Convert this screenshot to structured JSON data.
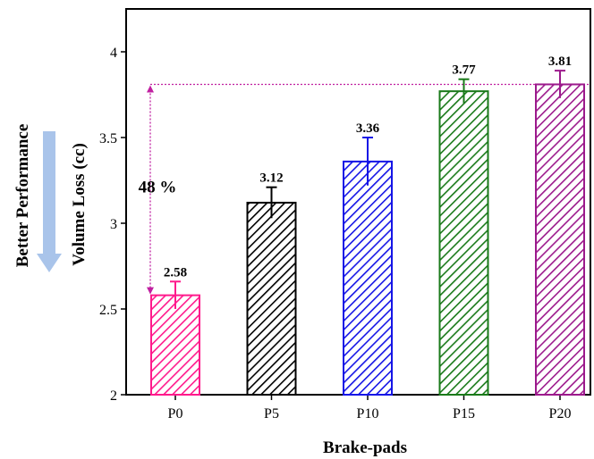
{
  "chart_data": {
    "type": "bar",
    "title": "",
    "xlabel": "Brake-pads",
    "ylabel": "Volume Loss (cc)",
    "categories": [
      "P0",
      "P5",
      "P10",
      "P15",
      "P20"
    ],
    "values": [
      2.58,
      3.12,
      3.36,
      3.77,
      3.81
    ],
    "value_labels": [
      "2.58",
      "3.12",
      "3.36",
      "3.77",
      "3.81"
    ],
    "errors": [
      0.08,
      0.09,
      0.14,
      0.07,
      0.08
    ],
    "colors": [
      "#ff1a8c",
      "#000000",
      "#1515e6",
      "#1a7a1a",
      "#9c1a8c"
    ],
    "ylim": [
      2,
      4.25
    ],
    "yticks": [
      "2",
      "2.5",
      "3",
      "3.5",
      "4"
    ],
    "pattern": "diagonal-hatch",
    "grid": false,
    "annotations": {
      "reference_line_value": 3.81,
      "reference_line_color": "#c01fa0",
      "improvement_label": "48 %",
      "side_label": "Better Performance",
      "side_arrow_color": "#a9c4ea",
      "side_arrow_direction": "down"
    }
  }
}
